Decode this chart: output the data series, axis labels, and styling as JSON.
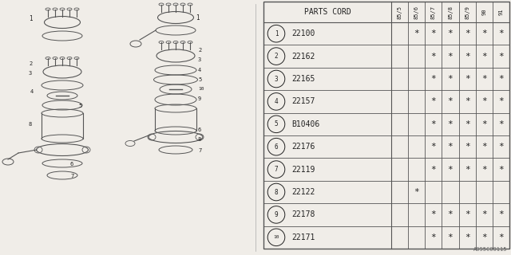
{
  "watermark": "A095C00115",
  "table_header": "PARTS CORD",
  "col_headers": [
    "85/5",
    "85/6",
    "85/7",
    "85/8",
    "85/9",
    "90",
    "91"
  ],
  "rows": [
    {
      "num": "1",
      "part": "22100",
      "stars": [
        false,
        true,
        true,
        true,
        true,
        true,
        true
      ]
    },
    {
      "num": "2",
      "part": "22162",
      "stars": [
        false,
        false,
        true,
        true,
        true,
        true,
        true
      ]
    },
    {
      "num": "3",
      "part": "22165",
      "stars": [
        false,
        false,
        true,
        true,
        true,
        true,
        true
      ]
    },
    {
      "num": "4",
      "part": "22157",
      "stars": [
        false,
        false,
        true,
        true,
        true,
        true,
        true
      ]
    },
    {
      "num": "5",
      "part": "B10406",
      "stars": [
        false,
        false,
        true,
        true,
        true,
        true,
        true
      ]
    },
    {
      "num": "6",
      "part": "22176",
      "stars": [
        false,
        false,
        true,
        true,
        true,
        true,
        true
      ]
    },
    {
      "num": "7",
      "part": "22119",
      "stars": [
        false,
        false,
        true,
        true,
        true,
        true,
        true
      ]
    },
    {
      "num": "8",
      "part": "22122",
      "stars": [
        false,
        true,
        false,
        false,
        false,
        false,
        false
      ]
    },
    {
      "num": "9",
      "part": "22178",
      "stars": [
        false,
        false,
        true,
        true,
        true,
        true,
        true
      ]
    },
    {
      "num": "10",
      "part": "22171",
      "stars": [
        false,
        false,
        true,
        true,
        true,
        true,
        true
      ]
    }
  ],
  "bg_color": "#f0ede8",
  "line_color": "#555555",
  "text_color": "#222222",
  "diagram_color": "#555555",
  "star_symbol": "*"
}
